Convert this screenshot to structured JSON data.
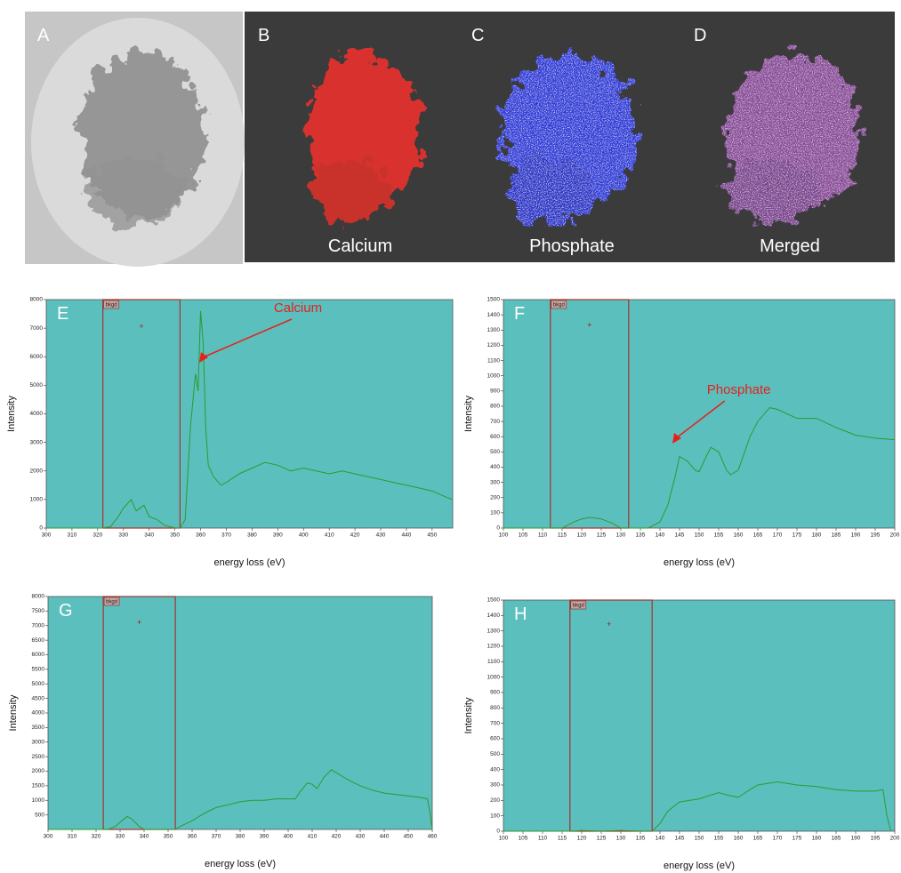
{
  "image_panels": [
    {
      "letter": "A"
    },
    {
      "letter": "B",
      "label": "Calcium"
    },
    {
      "letter": "C",
      "label": "Phosphate"
    },
    {
      "letter": "D",
      "label": "Merged"
    }
  ],
  "chart_data": [
    {
      "type": "line",
      "panel": "E",
      "annotation": "Calcium",
      "xlabel": "energy loss (eV)",
      "ylabel": "Intensity",
      "window_label": "bkgd",
      "window": [
        322,
        352
      ],
      "marker": [
        337,
        7050
      ],
      "color": "#2e9a2e",
      "background": "#5bbfbd",
      "x": [
        300,
        310,
        320,
        322,
        325,
        328,
        330,
        333,
        335,
        338,
        340,
        343,
        346,
        350,
        352,
        354,
        356,
        358,
        359,
        360,
        361,
        362,
        363,
        365,
        368,
        370,
        375,
        380,
        385,
        390,
        395,
        400,
        405,
        410,
        415,
        420,
        425,
        430,
        435,
        440,
        445,
        450,
        455,
        458
      ],
      "values": [
        0,
        0,
        0,
        0,
        50,
        400,
        700,
        1000,
        600,
        800,
        400,
        300,
        100,
        0,
        0,
        300,
        3500,
        5400,
        4800,
        7600,
        6500,
        3500,
        2200,
        1800,
        1500,
        1600,
        1900,
        2100,
        2300,
        2200,
        2000,
        2100,
        2000,
        1900,
        2000,
        1900,
        1800,
        1700,
        1600,
        1500,
        1400,
        1300,
        1100,
        1000
      ],
      "xlim": [
        300,
        458
      ],
      "ylim": [
        0,
        8000
      ],
      "xticks": [
        300,
        310,
        320,
        330,
        340,
        350,
        360,
        370,
        380,
        390,
        400,
        410,
        420,
        430,
        440,
        450
      ],
      "yticks": [
        0,
        1000,
        2000,
        3000,
        4000,
        5000,
        6000,
        7000,
        8000
      ]
    },
    {
      "type": "line",
      "panel": "F",
      "annotation": "Phosphate",
      "xlabel": "energy loss (eV)",
      "ylabel": "Intensity",
      "window_label": "bkgd",
      "window": [
        112,
        132
      ],
      "marker": [
        122,
        1330
      ],
      "color": "#2e9a2e",
      "background": "#5bbfbd",
      "x": [
        100,
        110,
        115,
        118,
        120,
        122,
        125,
        128,
        130,
        133,
        135,
        137,
        140,
        142,
        144,
        145,
        147,
        149,
        150,
        152,
        153,
        155,
        157,
        158,
        160,
        163,
        165,
        168,
        170,
        175,
        180,
        185,
        190,
        195,
        200
      ],
      "values": [
        0,
        0,
        0,
        40,
        60,
        70,
        60,
        30,
        0,
        0,
        0,
        0,
        40,
        150,
        350,
        470,
        440,
        380,
        370,
        480,
        530,
        500,
        380,
        350,
        380,
        600,
        700,
        790,
        780,
        720,
        720,
        660,
        610,
        590,
        580
      ],
      "xlim": [
        100,
        200
      ],
      "ylim": [
        0,
        1500
      ],
      "xticks": [
        100,
        105,
        110,
        115,
        120,
        125,
        130,
        135,
        140,
        145,
        150,
        155,
        160,
        165,
        170,
        175,
        180,
        185,
        190,
        195,
        200
      ],
      "yticks": [
        0,
        100,
        200,
        300,
        400,
        500,
        600,
        700,
        800,
        900,
        1000,
        1100,
        1200,
        1300,
        1400,
        1500
      ]
    },
    {
      "type": "line",
      "panel": "G",
      "xlabel": "energy loss (eV)",
      "ylabel": "Intensity",
      "window_label": "bkgd",
      "window": [
        323,
        353
      ],
      "marker": [
        338,
        7100
      ],
      "color": "#2e9a2e",
      "background": "#5bbfbd",
      "x": [
        300,
        320,
        325,
        328,
        330,
        333,
        335,
        338,
        340,
        345,
        350,
        353,
        355,
        360,
        365,
        370,
        375,
        380,
        385,
        390,
        395,
        400,
        403,
        405,
        408,
        410,
        412,
        415,
        418,
        420,
        425,
        430,
        435,
        440,
        445,
        450,
        455,
        458,
        459,
        460
      ],
      "values": [
        0,
        0,
        0,
        100,
        250,
        450,
        350,
        100,
        0,
        0,
        0,
        0,
        100,
        300,
        550,
        750,
        850,
        950,
        1000,
        1000,
        1050,
        1050,
        1050,
        1300,
        1600,
        1550,
        1400,
        1800,
        2050,
        1950,
        1700,
        1500,
        1350,
        1250,
        1200,
        1150,
        1100,
        1050,
        600,
        0
      ],
      "xlim": [
        300,
        460
      ],
      "ylim": [
        0,
        8000
      ],
      "xticks": [
        300,
        310,
        320,
        330,
        340,
        350,
        360,
        370,
        380,
        390,
        400,
        410,
        420,
        430,
        440,
        450,
        460
      ],
      "yticks": [
        500,
        1000,
        1500,
        2000,
        2500,
        3000,
        3500,
        4000,
        4500,
        5000,
        5500,
        6000,
        6500,
        7000,
        7500,
        8000
      ]
    },
    {
      "type": "line",
      "panel": "H",
      "xlabel": "energy loss (eV)",
      "ylabel": "Intensity",
      "window_label": "bkgd",
      "window": [
        117,
        138
      ],
      "marker": [
        127,
        1340
      ],
      "color": "#2e9a2e",
      "background": "#5bbfbd",
      "x": [
        100,
        118,
        120,
        125,
        130,
        135,
        138,
        140,
        142,
        145,
        150,
        155,
        158,
        160,
        163,
        165,
        170,
        175,
        180,
        185,
        190,
        195,
        197,
        198,
        199
      ],
      "values": [
        0,
        0,
        5,
        0,
        5,
        0,
        0,
        50,
        130,
        190,
        210,
        250,
        230,
        220,
        270,
        300,
        320,
        300,
        290,
        270,
        260,
        260,
        270,
        100,
        0
      ],
      "xlim": [
        100,
        200
      ],
      "ylim": [
        0,
        1500
      ],
      "xticks": [
        100,
        105,
        110,
        115,
        120,
        125,
        130,
        135,
        140,
        145,
        150,
        155,
        160,
        165,
        170,
        175,
        180,
        185,
        190,
        195,
        200
      ],
      "yticks": [
        0,
        100,
        200,
        300,
        400,
        500,
        600,
        700,
        800,
        900,
        1000,
        1100,
        1200,
        1300,
        1400,
        1500
      ]
    }
  ]
}
